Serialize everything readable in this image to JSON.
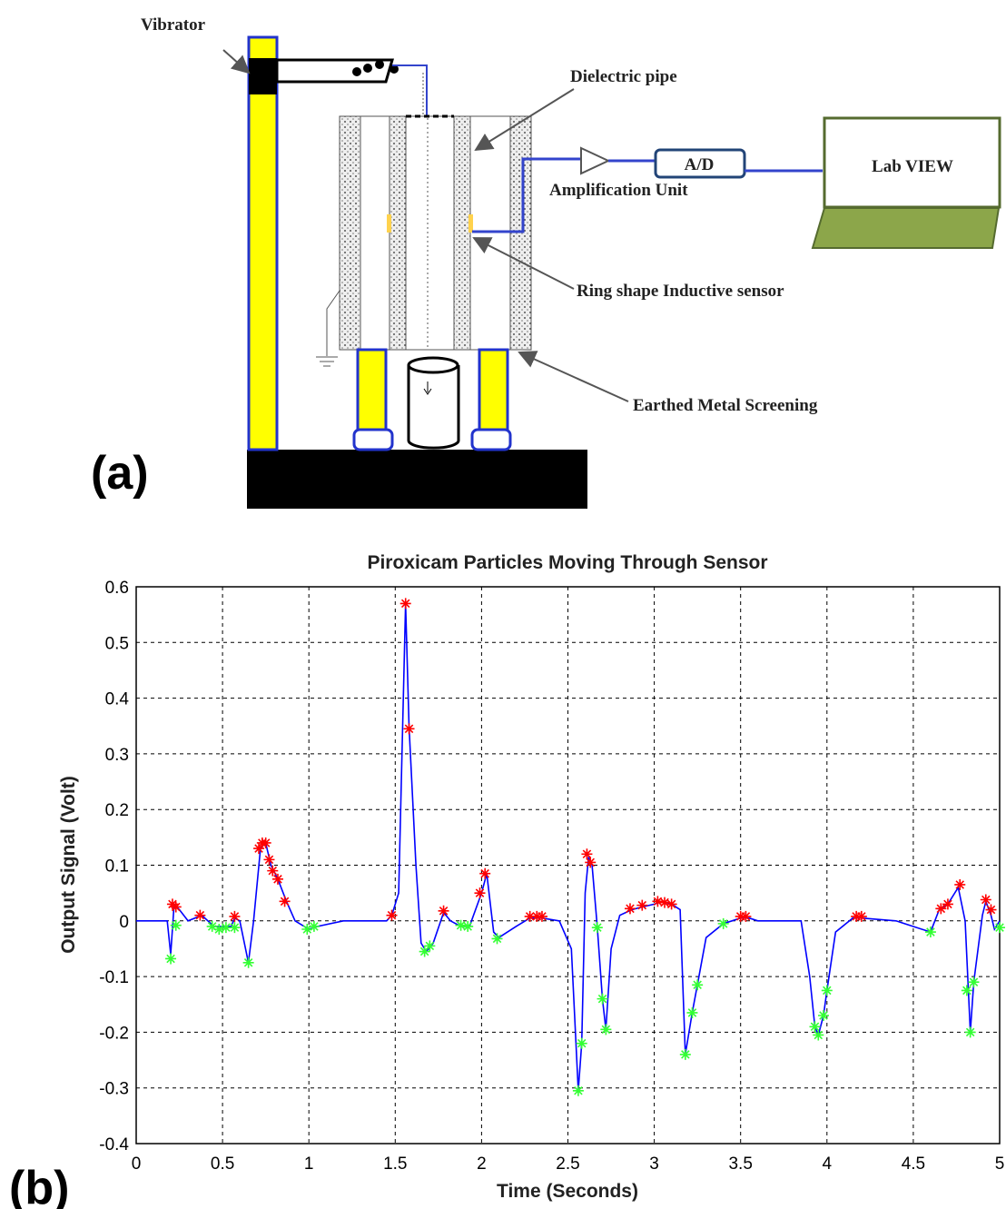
{
  "diagram": {
    "vibrator": "Vibrator",
    "dielectric_pipe": "Dielectric pipe",
    "amplification": "Amplification Unit",
    "ad": "A/D",
    "labview": "Lab VIEW",
    "sensor": "Ring shape Inductive sensor",
    "screening": "Earthed Metal Screening",
    "panel_label": "(a)"
  },
  "chart_data": {
    "type": "line",
    "panel_label": "(b)",
    "title": "Piroxicam  Particles Moving Through Sensor",
    "x_label": "Time (Seconds)",
    "y_label": "Output Signal (Volt)",
    "xlim": [
      0,
      5
    ],
    "xticks": [
      0,
      0.5,
      1,
      1.5,
      2,
      2.5,
      3,
      3.5,
      4,
      4.5,
      5
    ],
    "ylim": [
      -0.4,
      0.6
    ],
    "yticks": [
      -0.4,
      -0.3,
      -0.2,
      -0.1,
      0,
      0.1,
      0.2,
      0.3,
      0.4,
      0.5,
      0.6
    ],
    "grid": true,
    "x": [
      0,
      0.18,
      0.2,
      0.22,
      0.25,
      0.3,
      0.38,
      0.45,
      0.5,
      0.55,
      0.57,
      0.6,
      0.65,
      0.68,
      0.72,
      0.75,
      0.78,
      0.82,
      0.87,
      0.92,
      1.0,
      1.05,
      1.2,
      1.45,
      1.48,
      1.52,
      1.56,
      1.58,
      1.62,
      1.65,
      1.68,
      1.72,
      1.78,
      1.82,
      1.88,
      1.93,
      2.0,
      2.03,
      2.07,
      2.1,
      2.2,
      2.28,
      2.35,
      2.45,
      2.52,
      2.56,
      2.58,
      2.6,
      2.62,
      2.64,
      2.67,
      2.7,
      2.72,
      2.75,
      2.8,
      2.87,
      2.93,
      3.0,
      3.05,
      3.1,
      3.15,
      3.18,
      3.22,
      3.25,
      3.3,
      3.4,
      3.5,
      3.55,
      3.6,
      3.85,
      3.9,
      3.93,
      3.95,
      3.98,
      4.0,
      4.05,
      4.15,
      4.2,
      4.4,
      4.6,
      4.65,
      4.7,
      4.76,
      4.8,
      4.83,
      4.85,
      4.9,
      4.92,
      4.95,
      4.97,
      5.0
    ],
    "series": [
      {
        "color": "#0000ff",
        "values": [
          0,
          0,
          -0.06,
          0.03,
          0.02,
          0,
          0.01,
          -0.01,
          -0.01,
          -0.01,
          0.005,
          0,
          -0.075,
          0,
          0.13,
          0.14,
          0.1,
          0.075,
          0.035,
          0,
          -0.015,
          -0.01,
          0,
          0,
          0.01,
          0.05,
          0.57,
          0.35,
          0.1,
          -0.04,
          -0.055,
          -0.04,
          0.015,
          0,
          -0.01,
          -0.01,
          0.05,
          0.085,
          -0.02,
          -0.03,
          -0.01,
          0.005,
          0.005,
          0,
          -0.05,
          -0.305,
          -0.22,
          0.05,
          0.115,
          0.1,
          -0.01,
          -0.14,
          -0.195,
          -0.05,
          0.01,
          0.02,
          0.025,
          0.03,
          0.035,
          0.03,
          0.02,
          -0.24,
          -0.165,
          -0.115,
          -0.03,
          -0.005,
          0.005,
          0.005,
          0,
          0,
          -0.1,
          -0.19,
          -0.205,
          -0.17,
          -0.125,
          -0.02,
          0.005,
          0.005,
          0,
          -0.02,
          0.02,
          0.03,
          0.06,
          0,
          -0.2,
          -0.11,
          0.01,
          0.035,
          0.01,
          -0.015,
          0
        ]
      }
    ],
    "markers": [
      {
        "color": "#ff0000",
        "x": [
          0.21,
          0.23,
          0.37,
          0.57,
          0.71,
          0.73,
          0.75,
          0.77,
          0.79,
          0.82,
          0.86,
          1.48,
          1.56,
          1.58,
          1.78,
          1.99,
          2.02,
          2.28,
          2.32,
          2.35,
          2.61,
          2.63,
          2.86,
          2.93,
          3.02,
          3.06,
          3.1,
          3.5,
          3.53,
          4.17,
          4.2,
          4.66,
          4.7,
          4.77,
          4.92,
          4.95
        ],
        "values": [
          0.03,
          0.025,
          0.01,
          0.008,
          0.13,
          0.14,
          0.14,
          0.11,
          0.09,
          0.075,
          0.035,
          0.01,
          0.57,
          0.345,
          0.018,
          0.05,
          0.085,
          0.008,
          0.008,
          0.008,
          0.12,
          0.105,
          0.022,
          0.028,
          0.035,
          0.033,
          0.03,
          0.008,
          0.008,
          0.008,
          0.008,
          0.022,
          0.03,
          0.065,
          0.038,
          0.02
        ]
      },
      {
        "color": "#33ff33",
        "x": [
          0.2,
          0.23,
          0.44,
          0.48,
          0.52,
          0.57,
          0.65,
          0.99,
          1.03,
          1.67,
          1.7,
          1.88,
          1.92,
          2.09,
          2.56,
          2.58,
          2.67,
          2.7,
          2.72,
          3.18,
          3.22,
          3.25,
          3.4,
          3.93,
          3.95,
          3.98,
          4.0,
          4.6,
          4.81,
          4.83,
          4.85,
          5.0
        ],
        "values": [
          -0.068,
          -0.008,
          -0.01,
          -0.015,
          -0.012,
          -0.012,
          -0.075,
          -0.015,
          -0.01,
          -0.055,
          -0.045,
          -0.008,
          -0.01,
          -0.032,
          -0.305,
          -0.22,
          -0.012,
          -0.14,
          -0.195,
          -0.24,
          -0.165,
          -0.115,
          -0.005,
          -0.19,
          -0.205,
          -0.17,
          -0.125,
          -0.02,
          -0.125,
          -0.2,
          -0.11,
          -0.012
        ]
      }
    ]
  }
}
